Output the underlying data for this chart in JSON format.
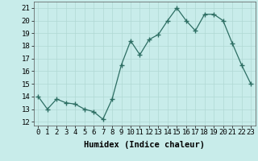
{
  "x": [
    0,
    1,
    2,
    3,
    4,
    5,
    6,
    7,
    8,
    9,
    10,
    11,
    12,
    13,
    14,
    15,
    16,
    17,
    18,
    19,
    20,
    21,
    22,
    23
  ],
  "y": [
    14,
    13,
    13.8,
    13.5,
    13.4,
    13,
    12.8,
    12.2,
    13.8,
    16.5,
    18.4,
    17.3,
    18.5,
    18.9,
    20,
    21,
    20,
    19.2,
    20.5,
    20.5,
    20,
    18.2,
    16.5,
    15
  ],
  "line_color": "#2d6e63",
  "marker": "+",
  "marker_size": 4,
  "bg_color": "#c8ecea",
  "grid_color": "#b0d8d4",
  "xlabel": "Humidex (Indice chaleur)",
  "ylabel_ticks": [
    12,
    13,
    14,
    15,
    16,
    17,
    18,
    19,
    20,
    21
  ],
  "ylim": [
    11.7,
    21.5
  ],
  "xlim": [
    -0.5,
    23.5
  ],
  "xtick_labels": [
    "0",
    "1",
    "2",
    "3",
    "4",
    "5",
    "6",
    "7",
    "8",
    "9",
    "10",
    "11",
    "12",
    "13",
    "14",
    "15",
    "16",
    "17",
    "18",
    "19",
    "20",
    "21",
    "22",
    "23"
  ],
  "xlabel_fontsize": 7.5,
  "tick_fontsize": 6.5
}
